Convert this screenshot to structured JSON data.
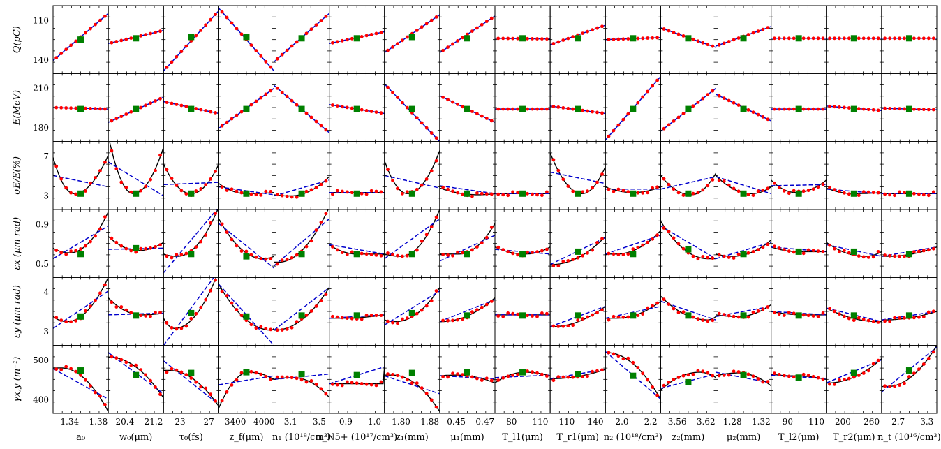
{
  "chart_data": {
    "type": "scatter",
    "title": "",
    "legend": "none",
    "grid": false,
    "colors": {
      "scatter": "#ff0000",
      "baseline": "#008000",
      "quadratic_fit": "#000000",
      "linear_fit": "#0000cc"
    },
    "rows": [
      {
        "ylabel": "Q(pC)",
        "yticks": [
          "110",
          "140"
        ],
        "ylim": [
          100,
          152
        ]
      },
      {
        "ylabel": "E(MeV)",
        "yticks": [
          "210",
          "180"
        ],
        "ylim": [
          172,
          218
        ]
      },
      {
        "ylabel": "σE/E(%)",
        "yticks": [
          "7",
          "3"
        ],
        "ylim": [
          2,
          8
        ]
      },
      {
        "ylabel": "εx (μm rad)",
        "yticks": [
          "0.9",
          "0.5"
        ],
        "ylim": [
          0.42,
          1.0
        ]
      },
      {
        "ylabel": "εy (μm rad)",
        "yticks": [
          "4",
          "3"
        ],
        "ylim": [
          2.5,
          4.5
        ]
      },
      {
        "ylabel": "γx,y (m⁻¹)",
        "yticks": [
          "500",
          "400"
        ],
        "ylim": [
          355,
          545
        ]
      }
    ],
    "columns": [
      {
        "xlabel": "a₀",
        "xticks": [
          "1.34",
          "1.38"
        ]
      },
      {
        "xlabel": "w₀(μm)",
        "xticks": [
          "20.4",
          "21.2"
        ]
      },
      {
        "xlabel": "τ₀(fs)",
        "xticks": [
          "23",
          "27"
        ]
      },
      {
        "xlabel": "z_f(μm)",
        "xticks": [
          "3400",
          "4000"
        ]
      },
      {
        "xlabel": "n₁ (10¹⁸/cm³)",
        "xticks": [
          "3.1",
          "3.5"
        ]
      },
      {
        "xlabel": "n_N5+ (10¹⁷/cm³)",
        "xticks": [
          "0.9",
          "1.0"
        ]
      },
      {
        "xlabel": "z₁(mm)",
        "xticks": [
          "1.80",
          "1.88"
        ]
      },
      {
        "xlabel": "μ₁(mm)",
        "xticks": [
          "0.45",
          "0.47"
        ]
      },
      {
        "xlabel": "T_l1(μm)",
        "xticks": [
          "80",
          "110"
        ]
      },
      {
        "xlabel": "T_r1(μm)",
        "xticks": [
          "110",
          "140"
        ]
      },
      {
        "xlabel": "n₂ (10¹⁸/cm³)",
        "xticks": [
          "2.0",
          "2.2"
        ]
      },
      {
        "xlabel": "z₂(mm)",
        "xticks": [
          "3.56",
          "3.62"
        ]
      },
      {
        "xlabel": "μ₂(mm)",
        "xticks": [
          "1.28",
          "1.32"
        ]
      },
      {
        "xlabel": "T_l2(μm)",
        "xticks": [
          "90",
          "110"
        ]
      },
      {
        "xlabel": "T_r2(μm)",
        "xticks": [
          "200",
          "260"
        ]
      },
      {
        "xlabel": "n_t (10¹⁶/cm³)",
        "xticks": [
          "2.7",
          "3.3"
        ]
      }
    ],
    "panels": [
      [
        "lin-",
        110,
        146,
        126,
        0,
        0
      ],
      [
        "lin",
        123,
        133,
        127,
        0,
        0
      ],
      [
        "lin",
        102,
        148,
        128,
        0,
        0
      ],
      [
        "lin",
        150,
        102,
        128,
        0,
        0
      ],
      [
        "lin",
        109,
        146,
        127,
        0,
        0
      ],
      [
        "lin",
        123,
        132,
        127,
        0,
        0
      ],
      [
        "lin",
        116,
        145,
        128,
        0,
        0
      ],
      [
        "lin",
        116,
        144,
        127,
        0,
        0
      ],
      [
        "lin",
        127,
        126.5,
        127,
        0,
        0
      ],
      [
        "lin",
        122,
        137,
        127,
        0,
        0
      ],
      [
        "lin",
        126,
        127.5,
        127,
        0,
        0
      ],
      [
        "lin",
        135,
        120,
        127,
        0,
        0
      ],
      [
        "lin",
        121,
        136,
        127,
        0,
        0
      ],
      [
        "lin",
        127,
        127,
        127,
        0,
        0
      ],
      [
        "lin",
        127,
        127,
        127,
        0,
        0
      ],
      [
        "lin",
        127,
        127,
        127,
        0,
        0
      ],
      [
        "lin",
        195,
        194,
        194,
        0,
        0
      ],
      [
        "lin",
        185,
        202,
        194,
        0,
        0
      ],
      [
        "lin",
        199,
        191,
        194,
        0,
        0
      ],
      [
        "lin",
        181,
        208,
        194,
        0,
        0
      ],
      [
        "lin",
        210,
        178,
        194,
        0,
        0
      ],
      [
        "lin",
        197,
        191,
        194,
        0,
        0
      ],
      [
        "lin",
        211,
        172,
        194,
        0,
        0
      ],
      [
        "lin",
        203,
        185,
        194,
        0,
        0
      ],
      [
        "lin",
        194,
        194,
        194,
        0,
        0
      ],
      [
        "lin",
        196,
        191,
        194,
        0,
        0
      ],
      [
        "lin",
        173,
        216,
        194,
        0,
        0
      ],
      [
        "lin",
        179,
        208,
        194,
        0,
        0
      ],
      [
        "lin",
        204,
        186,
        194,
        0,
        0
      ],
      [
        "lin",
        194,
        194,
        194,
        0,
        0
      ],
      [
        "lin",
        196,
        193,
        194,
        0,
        0
      ],
      [
        "lin",
        194.5,
        193.5,
        194,
        0,
        0
      ],
      [
        "quad",
        6.6,
        3.4,
        6.8,
        0.38,
        5.0,
        4.0,
        3.4
      ],
      [
        "quad",
        8.5,
        3.4,
        7.5,
        0.45,
        6.2,
        3.2,
        3.4
      ],
      [
        "quad",
        6.0,
        3.4,
        6.0,
        0.5,
        4.2,
        4.4,
        3.4
      ],
      [
        "quad",
        4.3,
        3.4,
        3.5,
        0.5,
        4.0,
        3.3,
        3.4
      ],
      [
        "quad",
        3.3,
        3.2,
        4.9,
        0.3,
        3.2,
        4.6,
        3.4
      ],
      [
        "quad",
        3.5,
        3.5,
        3.5,
        0.5,
        3.5,
        3.5,
        3.4
      ],
      [
        "quad",
        6.3,
        3.4,
        7.2,
        0.42,
        5.0,
        3.9,
        3.4
      ],
      [
        "quad",
        3.9,
        3.3,
        3.4,
        0.7,
        4.1,
        3.4,
        3.4
      ],
      [
        "quad",
        3.4,
        3.4,
        3.4,
        0.5,
        3.4,
        3.4,
        3.4
      ],
      [
        "quad",
        7.0,
        3.4,
        5.8,
        0.58,
        5.3,
        4.3,
        3.4
      ],
      [
        "quad",
        4.0,
        3.5,
        4.0,
        0.5,
        3.8,
        3.8,
        3.4
      ],
      [
        "quad",
        5.0,
        3.3,
        5.2,
        0.55,
        3.8,
        4.9,
        3.4
      ],
      [
        "quad",
        5.0,
        3.4,
        4.0,
        0.65,
        4.9,
        3.4,
        3.4
      ],
      [
        "quad",
        4.6,
        3.5,
        4.6,
        0.45,
        4.1,
        4.2,
        3.4
      ],
      [
        "quad",
        3.9,
        3.4,
        3.5,
        0.5,
        3.8,
        3.4,
        3.4
      ],
      [
        "quad",
        3.4,
        3.4,
        3.4,
        0.5,
        3.4,
        3.4,
        3.4
      ],
      [
        "quad",
        0.67,
        0.63,
        0.98,
        0.3,
        0.58,
        0.86,
        0.62
      ],
      [
        "quad",
        0.77,
        0.65,
        0.72,
        0.55,
        0.66,
        0.67,
        0.67
      ],
      [
        "quad",
        0.62,
        0.6,
        1.02,
        0.25,
        0.46,
        1.02,
        0.62
      ],
      [
        "quad",
        0.92,
        0.58,
        0.6,
        0.8,
        0.88,
        0.5,
        0.6
      ],
      [
        "quad",
        0.55,
        0.55,
        1.02,
        0.08,
        0.52,
        0.92,
        0.62
      ],
      [
        "quad",
        0.7,
        0.62,
        0.62,
        0.5,
        0.7,
        0.62,
        0.62
      ],
      [
        "quad",
        0.62,
        0.6,
        1.0,
        0.3,
        0.58,
        0.92,
        0.62
      ],
      [
        "quad",
        0.62,
        0.62,
        0.88,
        0.35,
        0.56,
        0.78,
        0.62
      ],
      [
        "quad",
        0.68,
        0.62,
        0.68,
        0.55,
        0.66,
        0.62,
        0.62
      ],
      [
        "quad",
        0.53,
        0.53,
        0.77,
        0.02,
        0.53,
        0.76,
        0.64
      ],
      [
        "quad",
        0.62,
        0.62,
        0.82,
        0.2,
        0.62,
        0.78,
        0.62
      ],
      [
        "quad",
        0.9,
        0.58,
        0.58,
        0.85,
        0.86,
        0.58,
        0.66
      ],
      [
        "quad",
        0.62,
        0.6,
        0.74,
        0.3,
        0.58,
        0.72,
        0.62
      ],
      [
        "quad",
        0.68,
        0.64,
        0.64,
        0.5,
        0.68,
        0.64,
        0.64
      ],
      [
        "quad",
        0.72,
        0.6,
        0.64,
        0.7,
        0.7,
        0.6,
        0.64
      ],
      [
        "quad",
        0.6,
        0.6,
        0.68,
        0.1,
        0.6,
        0.68,
        0.62
      ],
      [
        "quad",
        3.35,
        3.2,
        4.5,
        0.25,
        3.0,
        4.1,
        3.35
      ],
      [
        "quad",
        3.9,
        3.4,
        3.45,
        0.6,
        3.4,
        3.45,
        3.38
      ],
      [
        "quad",
        3.3,
        3.0,
        4.7,
        0.2,
        2.5,
        4.7,
        3.45
      ],
      [
        "quad",
        4.3,
        2.95,
        3.0,
        0.95,
        4.3,
        2.5,
        3.35
      ],
      [
        "quad",
        2.95,
        2.95,
        4.2,
        0.02,
        2.95,
        4.2,
        3.38
      ],
      [
        "quad",
        3.3,
        3.3,
        3.4,
        0.2,
        3.3,
        3.4,
        3.38
      ],
      [
        "quad",
        3.25,
        3.2,
        4.2,
        0.2,
        3.1,
        4.1,
        3.45
      ],
      [
        "quad",
        3.2,
        3.2,
        3.9,
        0.02,
        3.2,
        3.85,
        3.38
      ],
      [
        "quad",
        3.4,
        3.4,
        3.4,
        0.5,
        3.4,
        3.4,
        3.38
      ],
      [
        "quad",
        3.05,
        3.05,
        3.65,
        0.02,
        3.05,
        3.65,
        3.38
      ],
      [
        "quad",
        3.3,
        3.3,
        3.8,
        0.2,
        3.3,
        3.65,
        3.38
      ],
      [
        "quad",
        3.95,
        3.25,
        3.35,
        0.85,
        3.8,
        3.25,
        3.38
      ],
      [
        "quad",
        3.4,
        3.35,
        3.7,
        0.4,
        3.35,
        3.65,
        3.38
      ],
      [
        "quad",
        3.5,
        3.4,
        3.4,
        0.6,
        3.5,
        3.4,
        3.38
      ],
      [
        "quad",
        3.6,
        3.2,
        3.2,
        0.95,
        3.6,
        3.2,
        3.38
      ],
      [
        "quad",
        3.25,
        3.25,
        3.5,
        0.02,
        3.25,
        3.5,
        3.38
      ],
      [
        "quad",
        482,
        482,
        360,
        0.15,
        480,
        395,
        475
      ],
      [
        "quad",
        512,
        512,
        398,
        0.02,
        525,
        410,
        462
      ],
      [
        "quad",
        475,
        475,
        375,
        0.1,
        502,
        380,
        468
      ],
      [
        "quad",
        370,
        470,
        450,
        0.55,
        435,
        460,
        470
      ],
      [
        "quad",
        450,
        455,
        400,
        0.35,
        450,
        465,
        465
      ],
      [
        "quad",
        438,
        438,
        485,
        0.98,
        438,
        485,
        462
      ],
      [
        "quad",
        462,
        462,
        360,
        0.15,
        460,
        410,
        468
      ],
      [
        "quad",
        460,
        462,
        440,
        0.3,
        460,
        452,
        470
      ],
      [
        "quad",
        440,
        470,
        460,
        0.55,
        455,
        462,
        470
      ],
      [
        "quad",
        452,
        452,
        478,
        0.02,
        452,
        478,
        465
      ],
      [
        "quad",
        525,
        525,
        395,
        0.02,
        528,
        395,
        460
      ],
      [
        "quad",
        420,
        470,
        455,
        0.7,
        425,
        465,
        442
      ],
      [
        "quad",
        460,
        468,
        432,
        0.4,
        470,
        440,
        462
      ],
      [
        "quad",
        465,
        460,
        450,
        0.4,
        462,
        452,
        455
      ],
      [
        "quad",
        440,
        440,
        508,
        0.02,
        440,
        505,
        468
      ],
      [
        "quad",
        430,
        430,
        545,
        0.1,
        415,
        540,
        475
      ]
    ]
  }
}
